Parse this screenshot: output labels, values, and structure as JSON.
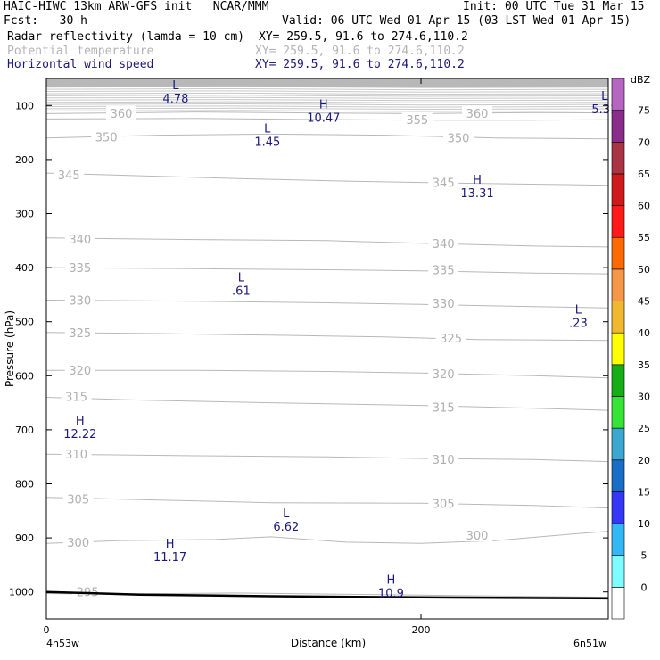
{
  "header": {
    "line1_left": "HAIC-HIWC 13km ARW-GFS init   NCAR/MMM",
    "line1_right": "Init: 00 UTC Tue 31 Mar 15",
    "line2_left": "Fcst:   30 h",
    "line2_right": "Valid: 06 UTC Wed 01 Apr 15 (03 LST Wed 01 Apr 15)",
    "fields": [
      {
        "name": "Radar reflectivity (lamda = 10 cm)",
        "xy": "XY= 259.5, 91.6 to 274.6,110.2",
        "color": "#000000"
      },
      {
        "name": "Potential temperature",
        "xy": "XY= 259.5, 91.6 to 274.6,110.2",
        "color": "#b4b4b4"
      },
      {
        "name": "Horizontal wind speed",
        "xy": "XY= 259.5, 91.6 to 274.6,110.2",
        "color": "#1a1a7a"
      }
    ]
  },
  "chart_data": {
    "type": "line",
    "xlabel": "Distance (km)",
    "ylabel": "Pressure (hPa)",
    "xlim": [
      0,
      300
    ],
    "ylim": [
      1050,
      50
    ],
    "x_ticks": [
      0,
      200
    ],
    "y_ticks": [
      100,
      200,
      300,
      400,
      500,
      600,
      700,
      800,
      900,
      1000
    ],
    "x_endpoint_labels": [
      "4n53w",
      "6n51w"
    ],
    "theta_contours": [
      {
        "label": "295",
        "points": [
          [
            0,
            1003
          ],
          [
            30,
            1004
          ],
          [
            100,
            1002
          ],
          [
            200,
            1006
          ],
          [
            310,
            1010
          ]
        ],
        "label_pos": [
          [
            22,
            1000
          ]
        ]
      },
      {
        "label": "300",
        "points": [
          [
            0,
            910
          ],
          [
            40,
            905
          ],
          [
            90,
            903
          ],
          [
            120,
            898
          ],
          [
            160,
            908
          ],
          [
            200,
            910
          ],
          [
            240,
            905
          ],
          [
            280,
            893
          ],
          [
            310,
            885
          ]
        ],
        "label_pos": [
          [
            17,
            908
          ],
          [
            230,
            895
          ]
        ]
      },
      {
        "label": "305",
        "points": [
          [
            0,
            825
          ],
          [
            60,
            830
          ],
          [
            120,
            835
          ],
          [
            200,
            836
          ],
          [
            260,
            840
          ],
          [
            310,
            846
          ]
        ],
        "label_pos": [
          [
            17,
            828
          ],
          [
            212,
            836
          ]
        ]
      },
      {
        "label": "310",
        "points": [
          [
            0,
            745
          ],
          [
            80,
            748
          ],
          [
            150,
            750
          ],
          [
            200,
            753
          ],
          [
            260,
            755
          ],
          [
            310,
            760
          ]
        ],
        "label_pos": [
          [
            16,
            745
          ],
          [
            212,
            755
          ]
        ]
      },
      {
        "label": "315",
        "points": [
          [
            0,
            640
          ],
          [
            50,
            645
          ],
          [
            120,
            650
          ],
          [
            200,
            655
          ],
          [
            260,
            660
          ],
          [
            310,
            665
          ]
        ],
        "label_pos": [
          [
            16,
            638
          ],
          [
            212,
            658
          ]
        ]
      },
      {
        "label": "320",
        "points": [
          [
            0,
            590
          ],
          [
            80,
            590
          ],
          [
            150,
            592
          ],
          [
            200,
            595
          ],
          [
            260,
            600
          ],
          [
            310,
            605
          ]
        ],
        "label_pos": [
          [
            18,
            590
          ],
          [
            212,
            596
          ]
        ]
      },
      {
        "label": "325",
        "points": [
          [
            0,
            520
          ],
          [
            60,
            522
          ],
          [
            120,
            525
          ],
          [
            180,
            528
          ],
          [
            230,
            533
          ],
          [
            310,
            535
          ]
        ],
        "label_pos": [
          [
            18,
            520
          ],
          [
            216,
            530
          ]
        ]
      },
      {
        "label": "330",
        "points": [
          [
            0,
            460
          ],
          [
            80,
            462
          ],
          [
            150,
            465
          ],
          [
            200,
            468
          ],
          [
            260,
            472
          ],
          [
            310,
            475
          ]
        ],
        "label_pos": [
          [
            18,
            460
          ],
          [
            212,
            466
          ]
        ]
      },
      {
        "label": "335",
        "points": [
          [
            0,
            400
          ],
          [
            80,
            402
          ],
          [
            150,
            404
          ],
          [
            200,
            406
          ],
          [
            260,
            410
          ],
          [
            310,
            412
          ]
        ],
        "label_pos": [
          [
            18,
            400
          ],
          [
            212,
            404
          ]
        ]
      },
      {
        "label": "340",
        "points": [
          [
            0,
            345
          ],
          [
            80,
            348
          ],
          [
            150,
            350
          ],
          [
            200,
            355
          ],
          [
            260,
            360
          ],
          [
            310,
            362
          ]
        ],
        "label_pos": [
          [
            18,
            347
          ],
          [
            212,
            355
          ]
        ]
      },
      {
        "label": "345",
        "points": [
          [
            0,
            225
          ],
          [
            50,
            230
          ],
          [
            100,
            235
          ],
          [
            160,
            240
          ],
          [
            210,
            243
          ],
          [
            250,
            245
          ],
          [
            310,
            248
          ]
        ],
        "label_pos": [
          [
            12,
            228
          ],
          [
            212,
            242
          ]
        ]
      },
      {
        "label": "350",
        "points": [
          [
            0,
            160
          ],
          [
            60,
            155
          ],
          [
            120,
            153
          ],
          [
            180,
            155
          ],
          [
            240,
            160
          ],
          [
            310,
            162
          ]
        ],
        "label_pos": [
          [
            32,
            158
          ],
          [
            220,
            160
          ]
        ]
      },
      {
        "label": "355",
        "points": [
          [
            0,
            125
          ],
          [
            80,
            124
          ],
          [
            150,
            126
          ],
          [
            200,
            127
          ],
          [
            260,
            127
          ],
          [
            310,
            126
          ]
        ],
        "label_pos": [
          [
            198,
            126
          ]
        ]
      },
      {
        "label": "360",
        "points": [
          [
            0,
            115
          ],
          [
            80,
            112
          ],
          [
            150,
            114
          ],
          [
            200,
            115
          ],
          [
            260,
            113
          ],
          [
            310,
            114
          ]
        ],
        "label_pos": [
          [
            40,
            114
          ],
          [
            230,
            114
          ]
        ]
      }
    ],
    "wind_extrema": [
      {
        "type": "L",
        "value": "4.78",
        "x": 69,
        "p": 70
      },
      {
        "type": "H",
        "value": "10.47",
        "x": 148,
        "p": 105
      },
      {
        "type": "L",
        "value": "5.31",
        "x": 298,
        "p": 90
      },
      {
        "type": "L",
        "value": "1.45",
        "x": 118,
        "p": 150
      },
      {
        "type": "H",
        "value": "13.31",
        "x": 230,
        "p": 245
      },
      {
        "type": "L",
        "value": ".61",
        "x": 104,
        "p": 425
      },
      {
        "type": "L",
        "value": ".23",
        "x": 284,
        "p": 485
      },
      {
        "type": "H",
        "value": "12.22",
        "x": 18,
        "p": 690
      },
      {
        "type": "L",
        "value": "6.62",
        "x": 128,
        "p": 862
      },
      {
        "type": "H",
        "value": "11.17",
        "x": 66,
        "p": 918
      },
      {
        "type": "H",
        "value": "10.9",
        "x": 184,
        "p": 985
      }
    ],
    "terrain": {
      "points": [
        [
          0,
          1000
        ],
        [
          50,
          1005
        ],
        [
          120,
          1008
        ],
        [
          200,
          1010
        ],
        [
          310,
          1012
        ]
      ]
    },
    "colorbar": {
      "unit": "dBZ",
      "labels": [
        "0",
        "5",
        "10",
        "15",
        "20",
        "25",
        "30",
        "35",
        "40",
        "45",
        "50",
        "55",
        "60",
        "65",
        "70",
        "75"
      ],
      "colors": [
        "#ffffff",
        "#7ffcff",
        "#32b8f5",
        "#3636f7",
        "#1a6ec8",
        "#3ca8cf",
        "#36e436",
        "#16ad16",
        "#ffff00",
        "#f0b830",
        "#f59648",
        "#ff6a00",
        "#ff1a1a",
        "#ce1a1a",
        "#a83444",
        "#8a2c8a",
        "#b466c0"
      ]
    }
  }
}
